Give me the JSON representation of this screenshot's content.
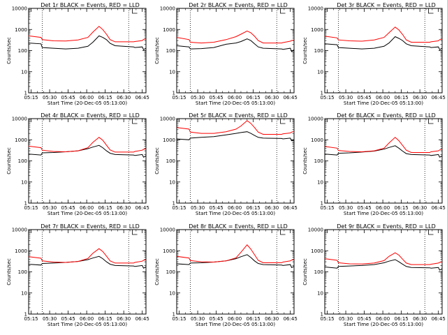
{
  "figure": {
    "colors": {
      "events": "#000000",
      "lld": "#ff0000",
      "frame": "#000000"
    },
    "panels": [
      {
        "title": "Det 1r BLACK = Events, RED = LLD"
      },
      {
        "title": "Det 2r BLACK = Events, RED = LLD"
      },
      {
        "title": "Det 3r BLACK = Events, RED = LLD"
      },
      {
        "title": "Det 4r BLACK = Events, RED = LLD"
      },
      {
        "title": "Det 5r BLACK = Events, RED = LLD"
      },
      {
        "title": "Det 6r BLACK = Events, RED = LLD"
      },
      {
        "title": "Det 7r BLACK = Events, RED = LLD"
      },
      {
        "title": "Det 8r BLACK = Events, RED = LLD"
      },
      {
        "title": "Det 9r BLACK = Events, RED = LLD"
      }
    ]
  },
  "chart_data": [
    {
      "type": "line",
      "title": "Det 1r BLACK = Events, RED = LLD",
      "xlabel": "Start Time (20-Dec-05 05:13:00)",
      "ylabel": "Counts/sec",
      "yscale": "log",
      "ylim": [
        1,
        10000
      ],
      "x_ticks": [
        "05:15",
        "05:30",
        "05:45",
        "06:00",
        "06:15",
        "06:30",
        "06:45"
      ],
      "y_ticks": [
        "1",
        "10",
        "100",
        "1000",
        "10000"
      ],
      "xlim_minutes": [
        0,
        95
      ],
      "x_minutes": [
        0,
        10,
        11,
        20,
        30,
        40,
        48,
        52,
        57,
        60,
        63,
        66,
        70,
        85,
        86,
        92,
        93,
        95
      ],
      "series": [
        {
          "name": "Events",
          "values": [
            230,
            210,
            140,
            130,
            120,
            130,
            160,
            250,
            500,
            420,
            330,
            220,
            170,
            150,
            140,
            150,
            110,
            130
          ]
        },
        {
          "name": "LLD",
          "values": [
            500,
            420,
            330,
            290,
            285,
            320,
            420,
            750,
            1400,
            1000,
            600,
            330,
            260,
            260,
            270,
            300,
            340,
            360
          ]
        }
      ],
      "vlines_dotted_minutes": [
        11,
        81
      ],
      "step_marker_minute": 84
    },
    {
      "type": "line",
      "title": "Det 2r BLACK = Events, RED = LLD",
      "xlabel": "Start Time (20-Dec-05 05:13:00)",
      "ylabel": "Counts/sec",
      "yscale": "log",
      "ylim": [
        1,
        10000
      ],
      "x_ticks": [
        "05:15",
        "05:30",
        "05:45",
        "06:00",
        "06:15",
        "06:30",
        "06:45"
      ],
      "y_ticks": [
        "1",
        "10",
        "100",
        "1000",
        "10000"
      ],
      "xlim_minutes": [
        0,
        95
      ],
      "x_minutes": [
        0,
        10,
        11,
        20,
        30,
        40,
        48,
        52,
        57,
        60,
        63,
        66,
        70,
        85,
        86,
        92,
        93,
        95
      ],
      "series": [
        {
          "name": "Events",
          "values": [
            170,
            150,
            120,
            125,
            140,
            200,
            230,
            270,
            360,
            300,
            210,
            150,
            130,
            120,
            115,
            130,
            90,
            110
          ]
        },
        {
          "name": "LLD",
          "values": [
            420,
            330,
            250,
            230,
            250,
            330,
            460,
            600,
            850,
            700,
            480,
            300,
            230,
            230,
            240,
            280,
            300,
            320
          ]
        }
      ],
      "vlines_dotted_minutes": [
        11,
        81
      ],
      "step_marker_minute": 84
    },
    {
      "type": "line",
      "title": "Det 3r BLACK = Events, RED = LLD",
      "xlabel": "Start Time (20-Dec-05 05:13:00)",
      "ylabel": "Counts/sec",
      "yscale": "log",
      "ylim": [
        1,
        10000
      ],
      "x_ticks": [
        "05:15",
        "05:30",
        "05:45",
        "06:00",
        "06:15",
        "06:30",
        "06:45"
      ],
      "y_ticks": [
        "1",
        "10",
        "100",
        "1000",
        "10000"
      ],
      "xlim_minutes": [
        0,
        95
      ],
      "x_minutes": [
        0,
        10,
        11,
        20,
        30,
        40,
        48,
        52,
        57,
        60,
        63,
        66,
        70,
        85,
        86,
        92,
        93,
        95
      ],
      "series": [
        {
          "name": "Events",
          "values": [
            210,
            190,
            140,
            130,
            120,
            130,
            160,
            230,
            460,
            380,
            300,
            210,
            170,
            150,
            140,
            150,
            110,
            130
          ]
        },
        {
          "name": "LLD",
          "values": [
            480,
            400,
            320,
            290,
            280,
            320,
            420,
            700,
            1300,
            950,
            580,
            320,
            250,
            250,
            260,
            290,
            330,
            350
          ]
        }
      ],
      "vlines_dotted_minutes": [
        11,
        81
      ],
      "step_marker_minute": 84
    },
    {
      "type": "line",
      "title": "Det 4r BLACK = Events, RED = LLD",
      "xlabel": "Start Time (20-Dec-05 05:13:00)",
      "ylabel": "Counts/sec",
      "yscale": "log",
      "ylim": [
        1,
        10000
      ],
      "x_ticks": [
        "05:15",
        "05:30",
        "05:45",
        "06:00",
        "06:15",
        "06:30",
        "06:45"
      ],
      "y_ticks": [
        "1",
        "10",
        "100",
        "1000",
        "10000"
      ],
      "xlim_minutes": [
        0,
        95
      ],
      "x_minutes": [
        0,
        10,
        11,
        20,
        30,
        40,
        48,
        52,
        57,
        60,
        63,
        66,
        70,
        85,
        86,
        92,
        93,
        95
      ],
      "series": [
        {
          "name": "Events",
          "values": [
            210,
            190,
            240,
            250,
            270,
            300,
            380,
            450,
            540,
            420,
            300,
            230,
            200,
            190,
            180,
            200,
            150,
            170
          ]
        },
        {
          "name": "LLD",
          "values": [
            500,
            420,
            320,
            280,
            270,
            300,
            420,
            750,
            1300,
            950,
            560,
            330,
            260,
            260,
            280,
            320,
            350,
            380
          ]
        }
      ],
      "vlines_dotted_minutes": [
        11,
        81
      ],
      "step_marker_minute": 84
    },
    {
      "type": "line",
      "title": "Det 5r BLACK = Events, RED = LLD",
      "xlabel": "Start Time (20-Dec-05 05:13:00)",
      "ylabel": "Counts/sec",
      "yscale": "log",
      "ylim": [
        1,
        10000
      ],
      "x_ticks": [
        "05:15",
        "05:30",
        "05:45",
        "06:00",
        "06:15",
        "06:30",
        "06:45"
      ],
      "y_ticks": [
        "1",
        "10",
        "100",
        "1000",
        "10000"
      ],
      "xlim_minutes": [
        0,
        95
      ],
      "x_minutes": [
        0,
        10,
        11,
        20,
        30,
        40,
        48,
        52,
        57,
        60,
        63,
        66,
        70,
        85,
        86,
        92,
        93,
        95
      ],
      "series": [
        {
          "name": "Events",
          "values": [
            1100,
            1000,
            1200,
            1300,
            1400,
            1700,
            2000,
            2200,
            2400,
            2000,
            1600,
            1300,
            1200,
            1150,
            1100,
            1200,
            900,
            1000
          ]
        },
        {
          "name": "LLD",
          "values": [
            3800,
            3200,
            2300,
            2000,
            2000,
            2400,
            3200,
            4500,
            8000,
            6000,
            3800,
            2300,
            1800,
            1800,
            1900,
            2100,
            2300,
            2500
          ]
        }
      ],
      "vlines_dotted_minutes": [
        11,
        81
      ],
      "step_marker_minute": 84
    },
    {
      "type": "line",
      "title": "Det 6r BLACK = Events, RED = LLD",
      "xlabel": "Start Time (20-Dec-05 05:13:00)",
      "ylabel": "Counts/sec",
      "yscale": "log",
      "ylim": [
        1,
        10000
      ],
      "x_ticks": [
        "05:15",
        "05:30",
        "05:45",
        "06:00",
        "06:15",
        "06:30",
        "06:45"
      ],
      "y_ticks": [
        "1",
        "10",
        "100",
        "1000",
        "10000"
      ],
      "xlim_minutes": [
        0,
        95
      ],
      "x_minutes": [
        0,
        10,
        11,
        20,
        30,
        40,
        48,
        52,
        57,
        60,
        63,
        66,
        70,
        85,
        86,
        92,
        93,
        95
      ],
      "series": [
        {
          "name": "Events",
          "values": [
            210,
            190,
            230,
            240,
            260,
            290,
            360,
            430,
            520,
            400,
            290,
            220,
            200,
            190,
            180,
            200,
            150,
            170
          ]
        },
        {
          "name": "LLD",
          "values": [
            480,
            400,
            310,
            280,
            270,
            300,
            400,
            700,
            1300,
            900,
            540,
            320,
            250,
            250,
            270,
            300,
            330,
            360
          ]
        }
      ],
      "vlines_dotted_minutes": [
        11,
        81
      ],
      "step_marker_minute": 84
    },
    {
      "type": "line",
      "title": "Det 7r BLACK = Events, RED = LLD",
      "xlabel": "Start Time (20-Dec-05 05:13:00)",
      "ylabel": "Counts/sec",
      "yscale": "log",
      "ylim": [
        1,
        10000
      ],
      "x_ticks": [
        "05:15",
        "05:30",
        "05:45",
        "06:00",
        "06:15",
        "06:30",
        "06:45"
      ],
      "y_ticks": [
        "1",
        "10",
        "100",
        "1000",
        "10000"
      ],
      "xlim_minutes": [
        0,
        95
      ],
      "x_minutes": [
        0,
        10,
        11,
        20,
        30,
        40,
        48,
        52,
        57,
        60,
        63,
        66,
        70,
        85,
        86,
        92,
        93,
        95
      ],
      "series": [
        {
          "name": "Events",
          "values": [
            230,
            210,
            250,
            260,
            280,
            310,
            380,
            450,
            540,
            420,
            300,
            230,
            200,
            190,
            180,
            200,
            150,
            170
          ]
        },
        {
          "name": "LLD",
          "values": [
            520,
            440,
            330,
            290,
            280,
            310,
            430,
            760,
            1250,
            920,
            560,
            330,
            260,
            260,
            280,
            320,
            350,
            380
          ]
        }
      ],
      "vlines_dotted_minutes": [
        11,
        81
      ],
      "step_marker_minute": 84
    },
    {
      "type": "line",
      "title": "Det 8r BLACK = Events, RED = LLD",
      "xlabel": "Start Time (20-Dec-05 05:13:00)",
      "ylabel": "Counts/sec",
      "yscale": "log",
      "ylim": [
        1,
        10000
      ],
      "x_ticks": [
        "05:15",
        "05:30",
        "05:45",
        "06:00",
        "06:15",
        "06:30",
        "06:45"
      ],
      "y_ticks": [
        "1",
        "10",
        "100",
        "1000",
        "10000"
      ],
      "xlim_minutes": [
        0,
        95
      ],
      "x_minutes": [
        0,
        10,
        11,
        20,
        30,
        40,
        48,
        52,
        57,
        60,
        63,
        66,
        70,
        85,
        86,
        92,
        93,
        95
      ],
      "series": [
        {
          "name": "Events",
          "values": [
            240,
            220,
            260,
            270,
            290,
            330,
            420,
            520,
            650,
            480,
            330,
            250,
            220,
            210,
            200,
            220,
            160,
            180
          ]
        },
        {
          "name": "LLD",
          "values": [
            540,
            450,
            340,
            300,
            290,
            330,
            460,
            850,
            1900,
            1200,
            650,
            350,
            270,
            270,
            290,
            330,
            360,
            390
          ]
        }
      ],
      "vlines_dotted_minutes": [
        11,
        81
      ],
      "step_marker_minute": 84
    },
    {
      "type": "line",
      "title": "Det 9r BLACK = Events, RED = LLD",
      "xlabel": "Start Time (20-Dec-05 05:13:00)",
      "ylabel": "Counts/sec",
      "yscale": "log",
      "ylim": [
        1,
        10000
      ],
      "x_ticks": [
        "05:15",
        "05:30",
        "05:45",
        "06:00",
        "06:15",
        "06:30",
        "06:45"
      ],
      "y_ticks": [
        "1",
        "10",
        "100",
        "1000",
        "10000"
      ],
      "xlim_minutes": [
        0,
        95
      ],
      "x_minutes": [
        0,
        10,
        11,
        20,
        30,
        40,
        48,
        52,
        57,
        60,
        63,
        66,
        70,
        85,
        86,
        92,
        93,
        95
      ],
      "series": [
        {
          "name": "Events",
          "values": [
            170,
            150,
            180,
            190,
            200,
            220,
            270,
            320,
            380,
            300,
            230,
            180,
            160,
            155,
            150,
            160,
            120,
            140
          ]
        },
        {
          "name": "LLD",
          "values": [
            420,
            350,
            270,
            240,
            235,
            260,
            340,
            540,
            800,
            620,
            400,
            260,
            220,
            220,
            230,
            260,
            280,
            300
          ]
        }
      ],
      "vlines_dotted_minutes": [
        11,
        81
      ],
      "step_marker_minute": 84
    }
  ]
}
